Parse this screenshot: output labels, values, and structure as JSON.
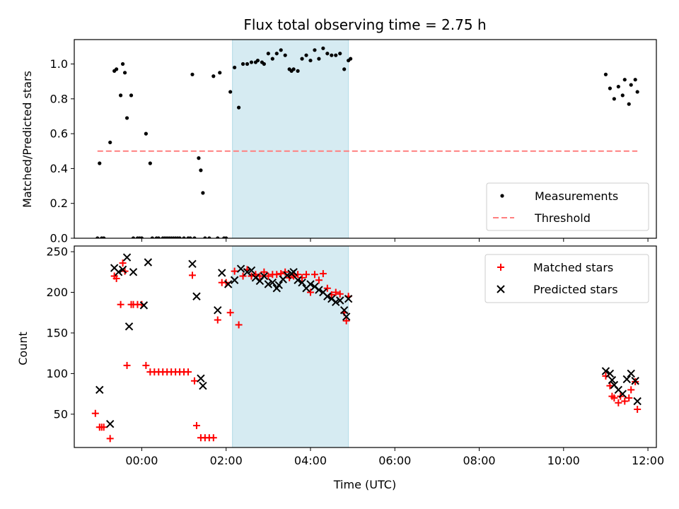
{
  "chart_data": [
    {
      "type": "scatter",
      "panel": "top",
      "title": "Flux total observing time = 2.75 h",
      "xlabel": "",
      "ylabel": "Matched/Predicted stars",
      "xlim": [
        -1.6,
        12.2
      ],
      "ylim": [
        0.0,
        1.14
      ],
      "yticks": [
        0.0,
        0.2,
        0.4,
        0.6,
        0.8,
        1.0
      ],
      "ytick_labels": [
        "0.0",
        "0.2",
        "0.4",
        "0.6",
        "0.8",
        "1.0"
      ],
      "shaded_span": {
        "x0": 2.15,
        "x1": 4.9,
        "color": "#add8e6"
      },
      "legend_position": "lower-right",
      "series": [
        {
          "name": "Measurements",
          "kind": "scatter",
          "marker": "dot",
          "color": "#000000",
          "x": [
            -1.05,
            -1.0,
            -0.95,
            -0.9,
            -0.75,
            -0.65,
            -0.6,
            -0.5,
            -0.45,
            -0.4,
            -0.35,
            -0.25,
            -0.2,
            -0.1,
            -0.05,
            0.0,
            0.1,
            0.2,
            0.25,
            0.35,
            0.4,
            0.5,
            0.55,
            0.6,
            0.65,
            0.7,
            0.75,
            0.8,
            0.85,
            0.9,
            1.0,
            1.1,
            1.15,
            1.2,
            1.25,
            1.35,
            1.4,
            1.45,
            1.5,
            1.6,
            1.7,
            1.8,
            1.85,
            1.95,
            2.0,
            2.1,
            2.2,
            2.3,
            2.4,
            2.5,
            2.6,
            2.7,
            2.75,
            2.85,
            2.9,
            3.0,
            3.1,
            3.2,
            3.3,
            3.4,
            3.5,
            3.55,
            3.6,
            3.7,
            3.8,
            3.9,
            4.0,
            4.1,
            4.2,
            4.3,
            4.4,
            4.5,
            4.6,
            4.7,
            4.8,
            4.9,
            4.95,
            11.0,
            11.1,
            11.2,
            11.3,
            11.4,
            11.45,
            11.55,
            11.6,
            11.7,
            11.75
          ],
          "y": [
            0.0,
            0.43,
            0.0,
            0.0,
            0.55,
            0.96,
            0.97,
            0.82,
            1.0,
            0.95,
            0.69,
            0.82,
            0.0,
            0.0,
            0.0,
            0.0,
            0.6,
            0.43,
            0.0,
            0.0,
            0.0,
            0.0,
            0.0,
            0.0,
            0.0,
            0.0,
            0.0,
            0.0,
            0.0,
            0.0,
            0.0,
            0.0,
            0.0,
            0.94,
            0.0,
            0.46,
            0.39,
            0.26,
            0.0,
            0.0,
            0.93,
            0.0,
            0.95,
            0.0,
            0.0,
            0.84,
            0.98,
            0.75,
            1.0,
            1.0,
            1.01,
            1.01,
            1.02,
            1.01,
            1.0,
            1.06,
            1.03,
            1.06,
            1.08,
            1.05,
            0.97,
            0.96,
            0.97,
            0.96,
            1.03,
            1.05,
            1.02,
            1.08,
            1.03,
            1.09,
            1.06,
            1.05,
            1.05,
            1.06,
            0.97,
            1.02,
            1.03,
            0.94,
            0.86,
            0.8,
            0.87,
            0.82,
            0.91,
            0.77,
            0.88,
            0.91,
            0.84
          ]
        },
        {
          "name": "Threshold",
          "kind": "line",
          "style": "dashed",
          "color": "#ff7f7f",
          "x": [
            -1.05,
            11.75
          ],
          "y": [
            0.5,
            0.5
          ]
        }
      ]
    },
    {
      "type": "scatter",
      "panel": "bottom",
      "title": "",
      "xlabel": "Time (UTC)",
      "ylabel": "Count",
      "xlim": [
        -1.6,
        12.2
      ],
      "ylim": [
        9,
        257
      ],
      "xticks": [
        0,
        2,
        4,
        6,
        8,
        10,
        12
      ],
      "xtick_labels": [
        "00:00",
        "02:00",
        "04:00",
        "06:00",
        "08:00",
        "10:00",
        "12:00"
      ],
      "yticks": [
        50,
        100,
        150,
        200,
        250
      ],
      "ytick_labels": [
        "50",
        "100",
        "150",
        "200",
        "250"
      ],
      "shaded_span": {
        "x0": 2.15,
        "x1": 4.9,
        "color": "#add8e6"
      },
      "legend_position": "upper-right",
      "series": [
        {
          "name": "Matched stars",
          "kind": "scatter",
          "marker": "plus",
          "color": "#ff0000",
          "x": [
            -1.1,
            -1.0,
            -0.95,
            -0.9,
            -0.75,
            -0.65,
            -0.6,
            -0.5,
            -0.45,
            -0.4,
            -0.35,
            -0.25,
            -0.2,
            -0.1,
            0.0,
            0.1,
            0.2,
            0.3,
            0.4,
            0.5,
            0.6,
            0.7,
            0.8,
            0.9,
            1.0,
            1.1,
            1.2,
            1.25,
            1.3,
            1.4,
            1.5,
            1.6,
            1.7,
            1.8,
            1.9,
            2.0,
            2.1,
            2.2,
            2.3,
            2.4,
            2.5,
            2.6,
            2.7,
            2.8,
            2.9,
            3.0,
            3.1,
            3.2,
            3.3,
            3.4,
            3.5,
            3.6,
            3.7,
            3.8,
            3.9,
            4.0,
            4.1,
            4.2,
            4.3,
            4.4,
            4.5,
            4.6,
            4.7,
            4.8,
            4.85,
            4.9,
            11.0,
            11.1,
            11.15,
            11.2,
            11.3,
            11.35,
            11.45,
            11.55,
            11.6,
            11.7,
            11.75
          ],
          "y": [
            51,
            34,
            34,
            34,
            20,
            220,
            217,
            185,
            236,
            226,
            110,
            185,
            185,
            185,
            185,
            110,
            102,
            102,
            102,
            102,
            102,
            102,
            102,
            102,
            102,
            102,
            221,
            91,
            36,
            21,
            21,
            21,
            21,
            166,
            212,
            212,
            175,
            226,
            160,
            220,
            228,
            220,
            222,
            220,
            225,
            220,
            222,
            222,
            223,
            225,
            218,
            220,
            222,
            218,
            222,
            200,
            222,
            215,
            223,
            205,
            197,
            200,
            198,
            175,
            165,
            195,
            97,
            85,
            72,
            70,
            64,
            72,
            66,
            70,
            80,
            90,
            56
          ]
        },
        {
          "name": "Predicted stars",
          "kind": "scatter",
          "marker": "x",
          "color": "#000000",
          "x": [
            -1.0,
            -0.75,
            -0.65,
            -0.55,
            -0.45,
            -0.35,
            -0.3,
            -0.2,
            0.05,
            0.15,
            1.2,
            1.3,
            1.4,
            1.45,
            1.8,
            1.9,
            2.05,
            2.2,
            2.35,
            2.5,
            2.6,
            2.7,
            2.8,
            2.9,
            3.0,
            3.1,
            3.2,
            3.25,
            3.35,
            3.45,
            3.55,
            3.6,
            3.7,
            3.8,
            3.9,
            4.0,
            4.1,
            4.2,
            4.3,
            4.4,
            4.5,
            4.6,
            4.7,
            4.8,
            4.85,
            4.9,
            11.0,
            11.1,
            11.15,
            11.2,
            11.3,
            11.4,
            11.5,
            11.6,
            11.7,
            11.75
          ],
          "y": [
            80,
            38,
            230,
            225,
            228,
            243,
            158,
            225,
            184,
            237,
            235,
            195,
            94,
            85,
            178,
            224,
            210,
            215,
            229,
            225,
            227,
            218,
            214,
            220,
            210,
            212,
            205,
            209,
            216,
            221,
            223,
            225,
            215,
            212,
            205,
            210,
            207,
            203,
            200,
            195,
            192,
            188,
            190,
            178,
            170,
            192,
            103,
            100,
            92,
            86,
            80,
            75,
            93,
            100,
            91,
            66
          ]
        }
      ]
    }
  ]
}
